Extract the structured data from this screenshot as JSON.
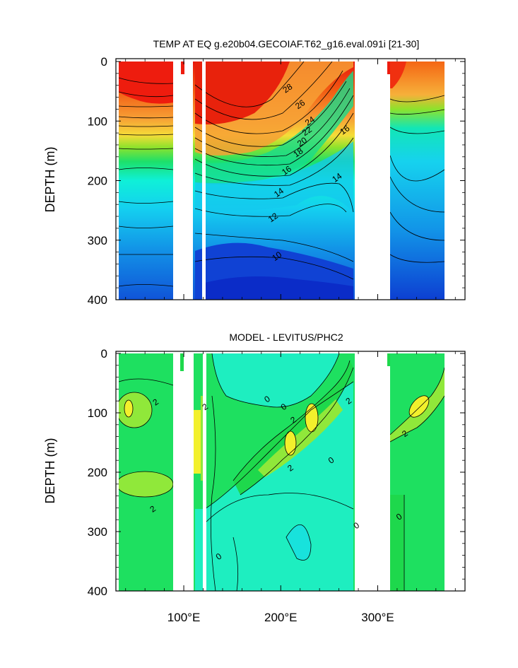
{
  "chart_data": [
    {
      "type": "contour",
      "title": "TEMP AT EQ g.e20b04.GECOIAF.T62_g16.eval.091i [21-30]",
      "ylabel": "DEPTH (m)",
      "ylim": [
        0,
        400
      ],
      "y_reversed": true,
      "xlim": [
        30,
        390
      ],
      "y_ticks": [
        "0",
        "100",
        "200",
        "300",
        "400"
      ],
      "land_gaps_x": [
        [
          97,
          119
        ],
        [
          128,
          131
        ],
        [
          279,
          313
        ]
      ],
      "contour_labels": [
        {
          "x": 207,
          "y": 45,
          "text": "28"
        },
        {
          "x": 220,
          "y": 72,
          "text": "26"
        },
        {
          "x": 230,
          "y": 100,
          "text": "24"
        },
        {
          "x": 227,
          "y": 117,
          "text": "22"
        },
        {
          "x": 222,
          "y": 135,
          "text": "20"
        },
        {
          "x": 218,
          "y": 153,
          "text": "18"
        },
        {
          "x": 206,
          "y": 183,
          "text": "16"
        },
        {
          "x": 266,
          "y": 115,
          "text": "16"
        },
        {
          "x": 198,
          "y": 220,
          "text": "14"
        },
        {
          "x": 258,
          "y": 195,
          "text": "14"
        },
        {
          "x": 192,
          "y": 262,
          "text": "12"
        },
        {
          "x": 196,
          "y": 327,
          "text": "10"
        }
      ]
    },
    {
      "type": "contour",
      "title": "MODEL - LEVITUS/PHC2",
      "ylabel": "DEPTH (m)",
      "ylim": [
        0,
        400
      ],
      "y_reversed": true,
      "xlim": [
        30,
        390
      ],
      "y_ticks": [
        "0",
        "100",
        "200",
        "300",
        "400"
      ],
      "x_ticks": [
        "100°E",
        "200°E",
        "300°E"
      ],
      "land_gaps_x": [
        [
          97,
          119
        ],
        [
          128,
          131
        ],
        [
          279,
          313
        ]
      ],
      "contour_labels": [
        {
          "x": 71,
          "y": 82,
          "text": "2"
        },
        {
          "x": 68,
          "y": 262,
          "text": "2"
        },
        {
          "x": 122,
          "y": 90,
          "text": "2"
        },
        {
          "x": 186,
          "y": 77,
          "text": "0"
        },
        {
          "x": 203,
          "y": 90,
          "text": "0"
        },
        {
          "x": 213,
          "y": 112,
          "text": "2"
        },
        {
          "x": 210,
          "y": 193,
          "text": "2"
        },
        {
          "x": 252,
          "y": 180,
          "text": "0"
        },
        {
          "x": 270,
          "y": 80,
          "text": "2"
        },
        {
          "x": 278,
          "y": 290,
          "text": "0"
        },
        {
          "x": 322,
          "y": 275,
          "text": "0"
        },
        {
          "x": 328,
          "y": 135,
          "text": "2"
        },
        {
          "x": 136,
          "y": 342,
          "text": "0"
        }
      ]
    }
  ]
}
